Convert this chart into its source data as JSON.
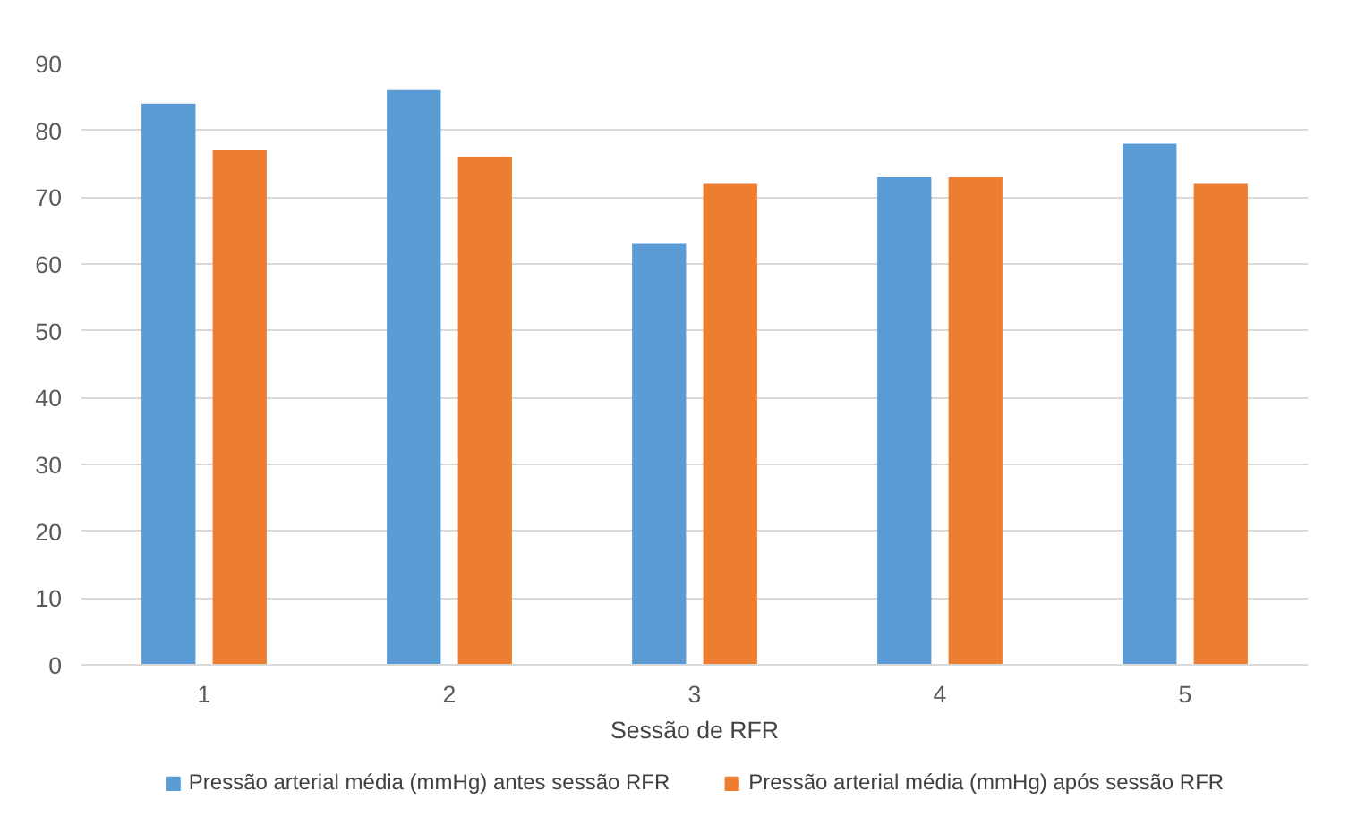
{
  "chart_data": {
    "type": "bar",
    "xlabel": "Sessão de RFR",
    "categories": [
      "1",
      "2",
      "3",
      "4",
      "5"
    ],
    "series": [
      {
        "name": "Pressão arterial média (mmHg) antes sessão RFR",
        "color": "#5b9bd5",
        "values": [
          84,
          86,
          63,
          73,
          78
        ]
      },
      {
        "name": "Pressão arterial média (mmHg) após sessão RFR",
        "color": "#ed7d31",
        "values": [
          77,
          76,
          72,
          73,
          72
        ]
      }
    ],
    "ylim": [
      0,
      90
    ],
    "yticks": [
      0,
      10,
      20,
      30,
      40,
      50,
      60,
      70,
      80,
      90
    ],
    "grid": "y",
    "legend": "bottom"
  }
}
